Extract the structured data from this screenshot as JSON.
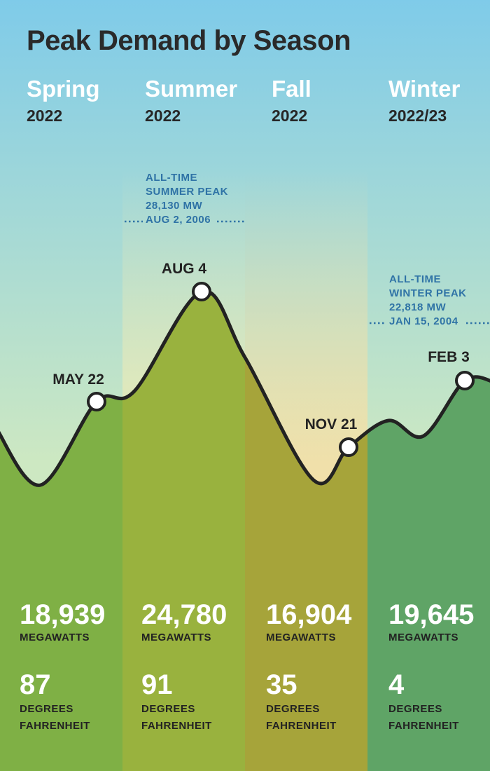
{
  "title": "Peak Demand by Season",
  "seasons": [
    {
      "name": "Spring",
      "year": "2022",
      "megawatts": "18,939",
      "megawatts_label": "MEGAWATTS",
      "degrees": "87",
      "degrees_label_1": "DEGREES",
      "degrees_label_2": "FAHRENHEIT"
    },
    {
      "name": "Summer",
      "year": "2022",
      "megawatts": "24,780",
      "megawatts_label": "MEGAWATTS",
      "degrees": "91",
      "degrees_label_1": "DEGREES",
      "degrees_label_2": "FAHRENHEIT"
    },
    {
      "name": "Fall",
      "year": "2022",
      "megawatts": "16,904",
      "megawatts_label": "MEGAWATTS",
      "degrees": "35",
      "degrees_label_1": "DEGREES",
      "degrees_label_2": "FAHRENHEIT"
    },
    {
      "name": "Winter",
      "year": "2022/23",
      "megawatts": "19,645",
      "megawatts_label": "MEGAWATTS",
      "degrees": "4",
      "degrees_label_1": "DEGREES",
      "degrees_label_2": "FAHRENHEIT"
    }
  ],
  "records": [
    {
      "lines": [
        "ALL-TIME",
        "SUMMER PEAK",
        "28,130 MW",
        "AUG 2, 2006"
      ],
      "value": 28130
    },
    {
      "lines": [
        "ALL-TIME",
        "WINTER PEAK",
        "22,818 MW",
        "JAN 15, 2004"
      ],
      "value": 22818
    }
  ],
  "chart_data": {
    "type": "area",
    "title": "Peak Demand by Season",
    "peaks": [
      {
        "label": "MAY 22",
        "season": "Spring",
        "value": 18939
      },
      {
        "label": "AUG 4",
        "season": "Summer",
        "value": 24780
      },
      {
        "label": "NOV 21",
        "season": "Fall",
        "value": 16904
      },
      {
        "label": "FEB 3",
        "season": "Winter",
        "value": 19645
      }
    ]
  },
  "colors": {
    "sky_top": "#7fcbe9",
    "sky_bottom": "#cde8c2",
    "spring_fill": "#7fb045",
    "summer_fill": "#99b23e",
    "fall_fill": "#a6a43a",
    "winter_fill": "#5fa466",
    "summer_highlight": "#f2ebb5",
    "fall_highlight": "#f6dfa6",
    "curve": "#222222",
    "record_text": "#2f73a6"
  }
}
